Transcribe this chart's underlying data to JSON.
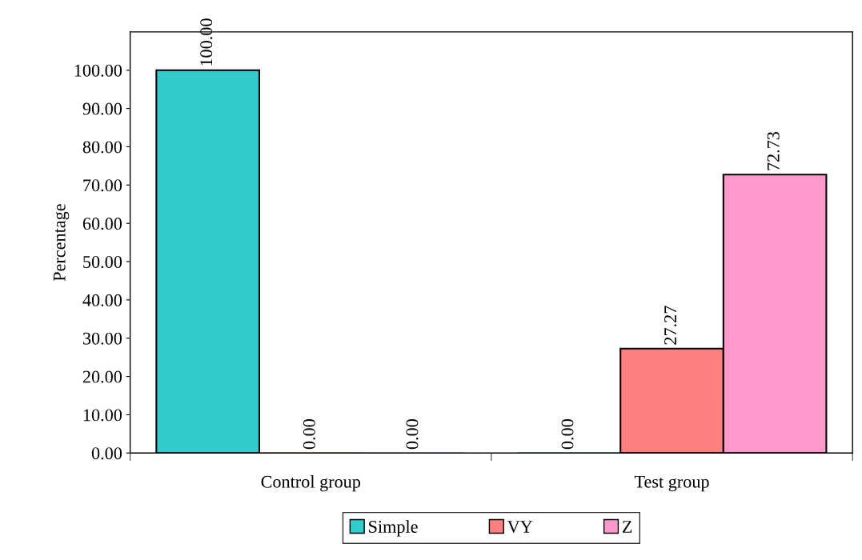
{
  "chart_data": {
    "type": "bar",
    "ylabel": "Percentage",
    "categories": [
      "Control group",
      "Test group"
    ],
    "series": [
      {
        "name": "Simple",
        "color": "#33cccc",
        "values": [
          100.0,
          0.0
        ],
        "value_labels": [
          "100.00",
          "0.00"
        ]
      },
      {
        "name": "VY",
        "color": "#ff8080",
        "values": [
          0.0,
          27.27
        ],
        "value_labels": [
          "0.00",
          "27.27"
        ]
      },
      {
        "name": "Z",
        "color": "#ff99cc",
        "values": [
          0.0,
          72.73
        ],
        "value_labels": [
          "0.00",
          "72.73"
        ]
      }
    ],
    "ylim": [
      0,
      110
    ],
    "yticks": [
      {
        "value": 0,
        "label": "0.00"
      },
      {
        "value": 10,
        "label": "10.00"
      },
      {
        "value": 20,
        "label": "20.00"
      },
      {
        "value": 30,
        "label": "30.00"
      },
      {
        "value": 40,
        "label": "40.00"
      },
      {
        "value": 50,
        "label": "50.00"
      },
      {
        "value": 60,
        "label": "60.00"
      },
      {
        "value": 70,
        "label": "70.00"
      },
      {
        "value": 80,
        "label": "80.00"
      },
      {
        "value": 90,
        "label": "90.00"
      },
      {
        "value": 100,
        "label": "100.00"
      }
    ],
    "legend": "bottom",
    "grid": false
  }
}
